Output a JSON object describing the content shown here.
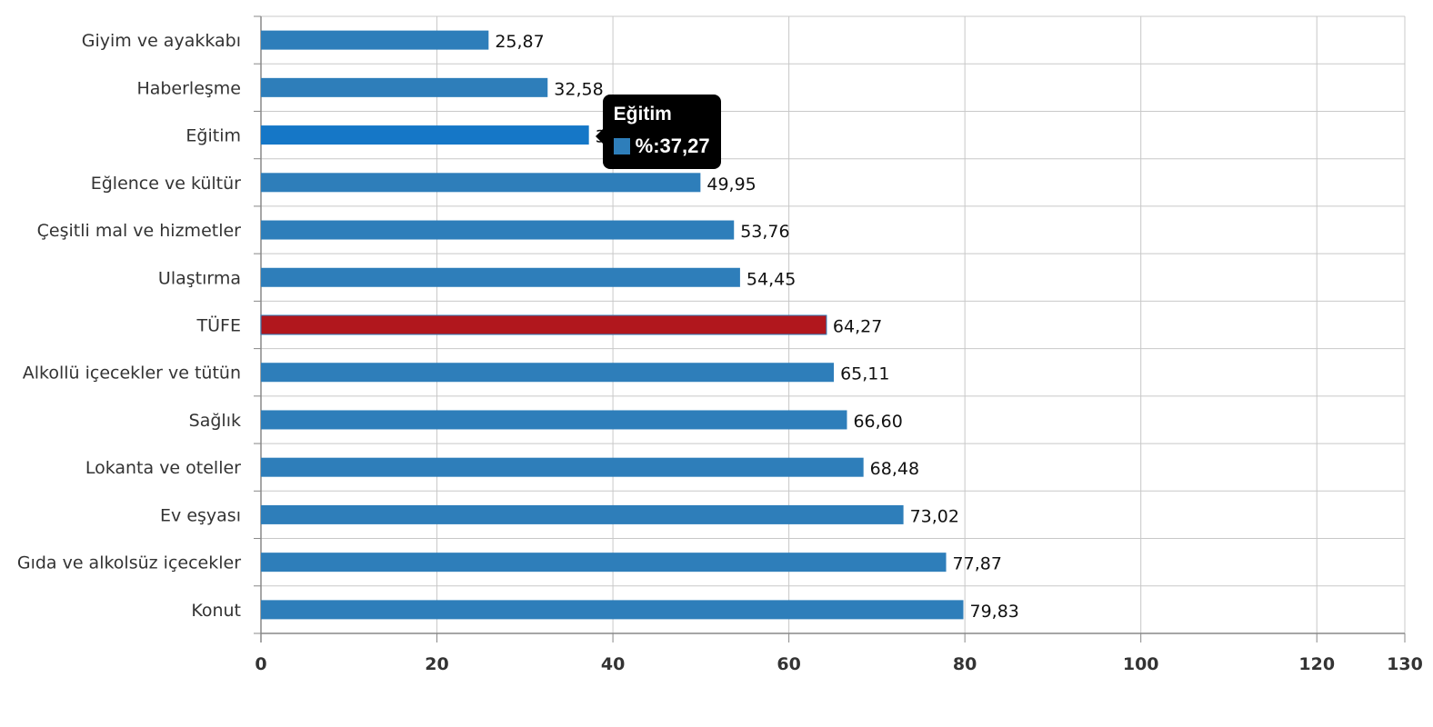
{
  "chart_data": {
    "type": "bar",
    "orientation": "horizontal",
    "categories": [
      "Giyim ve ayakkabı",
      "Haberleşme",
      "Eğitim",
      "Eğlence ve kültür",
      "Çeşitli mal ve hizmetler",
      "Ulaştırma",
      "TÜFE",
      "Alkollü içecekler ve tütün",
      "Sağlık",
      "Lokanta ve oteller",
      "Ev eşyası",
      "Gıda ve alkolsüz içecekler",
      "Konut"
    ],
    "values": [
      25.87,
      32.58,
      37.27,
      49.95,
      53.76,
      54.45,
      64.27,
      65.11,
      66.6,
      68.48,
      73.02,
      77.87,
      79.83
    ],
    "value_labels": [
      "25,87",
      "32,58",
      "37,27",
      "49,95",
      "53,76",
      "54,45",
      "64,27",
      "65,11",
      "66,60",
      "68,48",
      "73,02",
      "77,87",
      "79,83"
    ],
    "bar_color": "#2e7eba",
    "highlight_color": "#b1171d",
    "hover_color": "#1577c7",
    "highlight_category": "TÜFE",
    "hover_category": "Eğitim",
    "xlim": [
      0,
      130
    ],
    "xticks": [
      0,
      20,
      40,
      60,
      80,
      100,
      120,
      130
    ],
    "grid": true,
    "xlabel": "",
    "ylabel": "",
    "title": ""
  },
  "tooltip": {
    "title": "Eğitim",
    "series_label": "%",
    "value": "37,27",
    "swatch_color": "#2e7eba"
  }
}
